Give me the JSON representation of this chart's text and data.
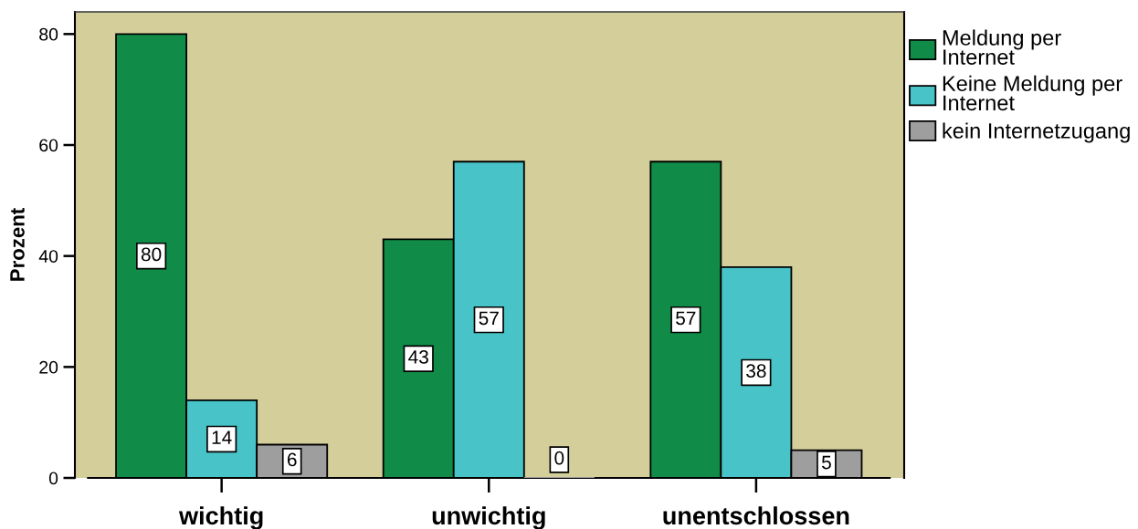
{
  "chart_data": {
    "type": "bar",
    "ylabel": "Prozent",
    "categories": [
      "wichtig",
      "unwichtig",
      "unentschlossen"
    ],
    "series": [
      {
        "name": "Meldung per Internet",
        "color": "#108c48",
        "values": [
          80,
          43,
          57
        ]
      },
      {
        "name": "Keine Meldung per Internet",
        "color": "#48c4c8",
        "values": [
          14,
          57,
          38
        ]
      },
      {
        "name": "kein Internetzugang",
        "color": "#9e9e9e",
        "values": [
          6,
          0,
          5
        ]
      }
    ],
    "ylim": [
      0,
      84
    ],
    "yticks": [
      0,
      20,
      40,
      60,
      80
    ],
    "data_labels": true,
    "legend": "top right"
  }
}
